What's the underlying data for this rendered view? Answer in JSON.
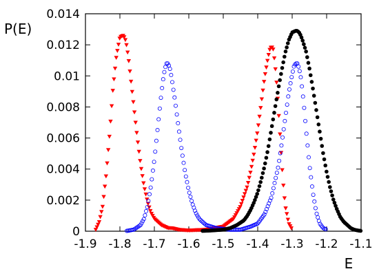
{
  "chart_data": {
    "type": "scatter",
    "title": "",
    "xlabel": "E",
    "ylabel": "P(E)",
    "xlim": [
      -1.9,
      -1.1
    ],
    "ylim": [
      0,
      0.014
    ],
    "grid": false,
    "legend": "none",
    "x_ticks": [
      "-1.9",
      "-1.8",
      "-1.7",
      "-1.6",
      "-1.5",
      "-1.4",
      "-1.3",
      "-1.2",
      "-1.1"
    ],
    "y_ticks": [
      "0",
      "0.002",
      "0.004",
      "0.006",
      "0.008",
      "0.01",
      "0.012",
      "0.014"
    ],
    "series": [
      {
        "marker": "filled-triangle-down",
        "color": "#ff0000",
        "x": [
          -1.87,
          -1.86,
          -1.85,
          -1.84,
          -1.83,
          -1.82,
          -1.81,
          -1.8,
          -1.79,
          -1.785,
          -1.78,
          -1.775,
          -1.77,
          -1.76,
          -1.75,
          -1.74,
          -1.73,
          -1.72,
          -1.71,
          -1.7,
          -1.69,
          -1.68,
          -1.67,
          -1.66,
          -1.65,
          -1.63,
          -1.6,
          -1.55,
          -1.5,
          -1.47,
          -1.45,
          -1.43,
          -1.42,
          -1.41,
          -1.4,
          -1.39,
          -1.38,
          -1.37,
          -1.365,
          -1.36,
          -1.355,
          -1.35,
          -1.345,
          -1.34,
          -1.335,
          -1.33,
          -1.325,
          -1.32,
          -1.31,
          -1.3
        ],
        "y": [
          0.0001,
          0.0006,
          0.0016,
          0.0036,
          0.0062,
          0.0092,
          0.0113,
          0.0125,
          0.0126,
          0.0124,
          0.0119,
          0.0111,
          0.0101,
          0.0081,
          0.0061,
          0.0043,
          0.0029,
          0.0019,
          0.0012,
          0.0008,
          0.0006,
          0.0004,
          0.0003,
          0.0002,
          0.0002,
          0.0001,
          5e-05,
          0.0001,
          0.0003,
          0.0008,
          0.0016,
          0.0029,
          0.0039,
          0.0051,
          0.0065,
          0.0082,
          0.0099,
          0.0112,
          0.0117,
          0.0119,
          0.0117,
          0.0108,
          0.0095,
          0.0079,
          0.0061,
          0.0043,
          0.0028,
          0.0016,
          0.0005,
          0.0001
        ]
      },
      {
        "marker": "open-circle",
        "color": "#0000ff",
        "x": [
          -1.78,
          -1.76,
          -1.74,
          -1.73,
          -1.72,
          -1.71,
          -1.7,
          -1.69,
          -1.68,
          -1.675,
          -1.67,
          -1.665,
          -1.66,
          -1.655,
          -1.65,
          -1.64,
          -1.63,
          -1.62,
          -1.61,
          -1.6,
          -1.59,
          -1.58,
          -1.57,
          -1.55,
          -1.52,
          -1.48,
          -1.45,
          -1.42,
          -1.4,
          -1.38,
          -1.36,
          -1.34,
          -1.33,
          -1.32,
          -1.31,
          -1.3,
          -1.295,
          -1.29,
          -1.285,
          -1.28,
          -1.275,
          -1.27,
          -1.265,
          -1.26,
          -1.25,
          -1.24,
          -1.23,
          -1.22,
          -1.21,
          -1.2
        ],
        "y": [
          2e-05,
          0.0001,
          0.0004,
          0.0008,
          0.0016,
          0.0029,
          0.0046,
          0.0067,
          0.0088,
          0.0097,
          0.0104,
          0.0108,
          0.0108,
          0.0105,
          0.0099,
          0.0084,
          0.0067,
          0.0051,
          0.0037,
          0.0026,
          0.0018,
          0.0012,
          0.0008,
          0.0004,
          0.0002,
          0.0001,
          0.0001,
          0.0003,
          0.0005,
          0.0011,
          0.0022,
          0.0042,
          0.0057,
          0.0073,
          0.0089,
          0.0101,
          0.0106,
          0.0108,
          0.0108,
          0.0105,
          0.0099,
          0.009,
          0.0079,
          0.0066,
          0.0043,
          0.0025,
          0.0012,
          0.0005,
          0.0002,
          0.0001
        ]
      },
      {
        "marker": "filled-circle",
        "color": "#000000",
        "x": [
          -1.56,
          -1.53,
          -1.5,
          -1.48,
          -1.46,
          -1.44,
          -1.43,
          -1.42,
          -1.41,
          -1.4,
          -1.39,
          -1.38,
          -1.37,
          -1.36,
          -1.35,
          -1.34,
          -1.33,
          -1.32,
          -1.31,
          -1.3,
          -1.29,
          -1.285,
          -1.28,
          -1.275,
          -1.27,
          -1.26,
          -1.25,
          -1.24,
          -1.23,
          -1.22,
          -1.21,
          -1.2,
          -1.19,
          -1.18,
          -1.17,
          -1.16,
          -1.15,
          -1.14,
          -1.13,
          -1.12,
          -1.11,
          -1.1
        ],
        "y": [
          2e-05,
          5e-05,
          0.0001,
          0.0002,
          0.0004,
          0.0007,
          0.001,
          0.0014,
          0.0019,
          0.0025,
          0.0033,
          0.0042,
          0.0053,
          0.0066,
          0.0079,
          0.0092,
          0.0104,
          0.0115,
          0.0123,
          0.0128,
          0.0129,
          0.0129,
          0.0128,
          0.0126,
          0.0123,
          0.0116,
          0.0105,
          0.0092,
          0.0078,
          0.0064,
          0.005,
          0.0038,
          0.0028,
          0.002,
          0.0014,
          0.0009,
          0.0006,
          0.0004,
          0.0002,
          0.0001,
          5e-05,
          2e-05
        ]
      }
    ]
  }
}
